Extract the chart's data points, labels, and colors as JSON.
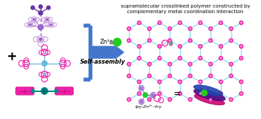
{
  "title_text": "supramolecular crosslinked polymer constructed by\ncomplementary metal coordination interaction",
  "zn_label": "Zn²⁺",
  "assembly_label": "Self-assembly",
  "tpy_label": "tpy-Zn²⁺-4ry",
  "bg_color": "#ffffff",
  "title_fontsize": 5.2,
  "purple_dark": "#6633AA",
  "purple_mid": "#9966CC",
  "purple_light": "#CC99DD",
  "pink": "#EE22AA",
  "cyan_light": "#88DDEE",
  "cyan_node": "#66BBDD",
  "teal": "#008888",
  "green_ball": "#22CC22",
  "gray_square": "#888888",
  "blue_arrow": "#3366BB",
  "blue_bracket": "#4477CC"
}
